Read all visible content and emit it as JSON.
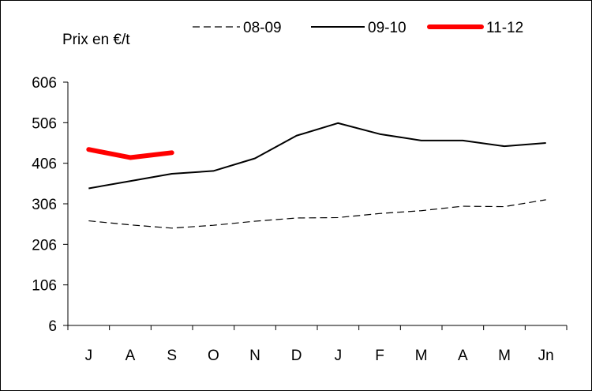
{
  "chart_data": {
    "type": "line",
    "ylabel": "Prix en €/t",
    "categories": [
      "J",
      "A",
      "S",
      "O",
      "N",
      "D",
      "J",
      "F",
      "M",
      "A",
      "M",
      "Jn"
    ],
    "yticks": [
      6,
      106,
      206,
      306,
      406,
      506,
      606
    ],
    "ylim": [
      6,
      606
    ],
    "grid": false,
    "legend_position": "top",
    "series": [
      {
        "name": "08-09",
        "style": "dashed",
        "color": "#000000",
        "values": [
          264,
          254,
          246,
          253,
          263,
          271,
          272,
          282,
          289,
          300,
          299,
          316
        ]
      },
      {
        "name": "09-10",
        "style": "solid",
        "color": "#000000",
        "values": [
          344,
          362,
          380,
          387,
          418,
          474,
          505,
          478,
          462,
          462,
          448,
          456
        ]
      },
      {
        "name": "11-12",
        "style": "thick",
        "color": "#ff0000",
        "values": [
          440,
          420,
          432,
          null,
          null,
          null,
          null,
          null,
          null,
          null,
          null,
          null
        ]
      }
    ]
  }
}
